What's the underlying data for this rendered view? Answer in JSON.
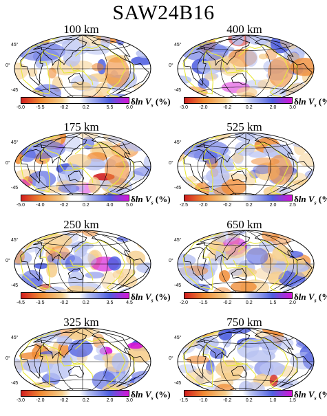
{
  "title": "SAW24B16",
  "unit_label": {
    "delta": "δ",
    "ln": "ln",
    "v": "V",
    "sub": "s",
    "percent": "(%)"
  },
  "latitude_labels": [
    "45°",
    "0°",
    "-45"
  ],
  "colors": {
    "negative_strong": "#d21f1f",
    "negative_mid": "#f08a33",
    "negative_light": "#f6cf8e",
    "neutral": "#ffffff",
    "positive_light": "#b8c2f2",
    "positive_mid": "#4f5fe0",
    "positive_strong": "#d614d6",
    "plate_boundaries": "#e8e838",
    "coastlines": "#000000"
  },
  "panels": [
    {
      "depth": "100 km",
      "ticks": [
        "-6.0",
        "-5.5",
        "-0.2",
        "0.2",
        "5.5",
        "6.0"
      ]
    },
    {
      "depth": "400 km",
      "ticks": [
        "-3.0",
        "-2.0",
        "-0.2",
        "0.2",
        "2.0",
        "3.0"
      ]
    },
    {
      "depth": "175 km",
      "ticks": [
        "-5.0",
        "-4.0",
        "-0.2",
        "0.2",
        "4.0",
        "5.0"
      ]
    },
    {
      "depth": "525 km",
      "ticks": [
        "-2.5",
        "-2.0",
        "-0.2",
        "0.2",
        "2.0",
        "2.5"
      ]
    },
    {
      "depth": "250 km",
      "ticks": [
        "-4.5",
        "-3.5",
        "-0.2",
        "0.2",
        "3.5",
        "4.5"
      ]
    },
    {
      "depth": "650 km",
      "ticks": [
        "-2.0",
        "-1.5",
        "-0.2",
        "0.2",
        "1.5",
        "2.0"
      ]
    },
    {
      "depth": "325 km",
      "ticks": [
        "-3.0",
        "-2.0",
        "-0.2",
        "0.2",
        "2.0",
        "3.0"
      ]
    },
    {
      "depth": "750 km",
      "ticks": [
        "-1.5",
        "-1.0",
        "-0.2",
        "0.2",
        "1.0",
        "1.5"
      ]
    }
  ]
}
